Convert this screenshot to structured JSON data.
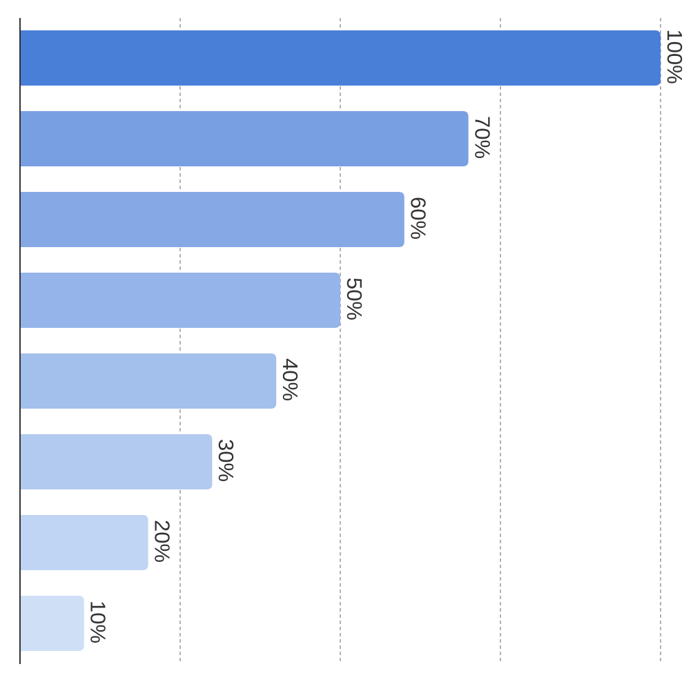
{
  "chart_data": {
    "type": "bar",
    "orientation": "horizontal",
    "categories": [
      null,
      null,
      null,
      null,
      null,
      null,
      null,
      null
    ],
    "values": [
      100,
      70,
      60,
      50,
      40,
      30,
      20,
      10
    ],
    "value_labels": [
      "100%",
      "70%",
      "60%",
      "50%",
      "40%",
      "30%",
      "20%",
      "10%"
    ],
    "colors": [
      "#4a7fd8",
      "#789fe2",
      "#86a8e5",
      "#95b4e9",
      "#a3bfec",
      "#b2caef",
      "#c0d4f3",
      "#cfdff6"
    ],
    "xlim": [
      0,
      100
    ],
    "xticks": [
      25,
      50,
      75,
      100
    ],
    "grid": true
  }
}
